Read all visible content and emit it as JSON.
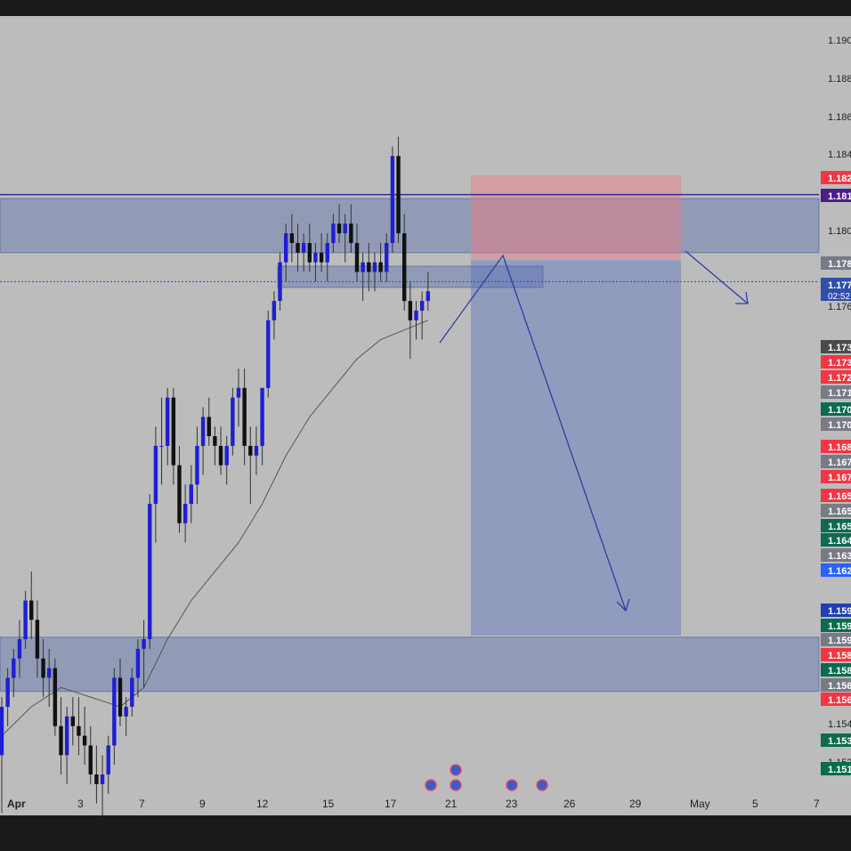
{
  "chart_data": {
    "type": "candlestick",
    "instrument_note": "",
    "x_tick_labels": [
      "Apr",
      "3",
      "7",
      "9",
      "12",
      "15",
      "17",
      "21",
      "23",
      "26",
      "29",
      "May",
      "5",
      "7"
    ],
    "y_tick_labels": [
      "1.190",
      "1.188",
      "1.186",
      "1.184",
      "1.180",
      "1.178",
      "1.176",
      "1.154",
      "1.152"
    ],
    "price_tags": [
      {
        "text": "1.182",
        "color": "#f23645"
      },
      {
        "text": "1.181",
        "color": "#4a1f8a"
      },
      {
        "text": "1.178",
        "color": "#787b86"
      },
      {
        "text": "1.177",
        "color": "#2f4fa8",
        "sub": "02:52"
      },
      {
        "text": "1.173",
        "color": "#4a4a4a"
      },
      {
        "text": "1.173",
        "color": "#f23645"
      },
      {
        "text": "1.172",
        "color": "#f23645"
      },
      {
        "text": "1.171",
        "color": "#787b86"
      },
      {
        "text": "1.170",
        "color": "#0b6b4f"
      },
      {
        "text": "1.170",
        "color": "#787b86"
      },
      {
        "text": "1.168",
        "color": "#f23645"
      },
      {
        "text": "1.167",
        "color": "#787b86"
      },
      {
        "text": "1.167",
        "color": "#f23645"
      },
      {
        "text": "1.165",
        "color": "#f23645"
      },
      {
        "text": "1.165",
        "color": "#787b86"
      },
      {
        "text": "1.165",
        "color": "#0b6b4f"
      },
      {
        "text": "1.164",
        "color": "#0b6b4f"
      },
      {
        "text": "1.163",
        "color": "#787b86"
      },
      {
        "text": "1.162",
        "color": "#2962ff"
      },
      {
        "text": "1.159",
        "color": "#1f3fb0"
      },
      {
        "text": "1.159",
        "color": "#0b6b4f"
      },
      {
        "text": "1.159",
        "color": "#787b86"
      },
      {
        "text": "1.158",
        "color": "#f23645"
      },
      {
        "text": "1.158",
        "color": "#0b6b4f"
      },
      {
        "text": "1.156",
        "color": "#787b86"
      },
      {
        "text": "1.156",
        "color": "#f23645"
      },
      {
        "text": "1.153",
        "color": "#0b6b4f"
      },
      {
        "text": "1.151",
        "color": "#0b6b4f"
      }
    ],
    "candles": [
      [
        1.153,
        1.156,
        1.15,
        1.1555
      ],
      [
        1.1555,
        1.1575,
        1.1545,
        1.157
      ],
      [
        1.157,
        1.1585,
        1.156,
        1.158
      ],
      [
        1.158,
        1.16,
        1.157,
        1.159
      ],
      [
        1.159,
        1.1615,
        1.1585,
        1.161
      ],
      [
        1.161,
        1.1625,
        1.159,
        1.16
      ],
      [
        1.16,
        1.161,
        1.157,
        1.158
      ],
      [
        1.158,
        1.159,
        1.156,
        1.157
      ],
      [
        1.157,
        1.1585,
        1.1555,
        1.1575
      ],
      [
        1.1575,
        1.158,
        1.154,
        1.1545
      ],
      [
        1.1545,
        1.156,
        1.152,
        1.153
      ],
      [
        1.153,
        1.1555,
        1.1515,
        1.155
      ],
      [
        1.155,
        1.156,
        1.1535,
        1.1545
      ],
      [
        1.1545,
        1.156,
        1.153,
        1.154
      ],
      [
        1.154,
        1.1555,
        1.1525,
        1.1535
      ],
      [
        1.1535,
        1.1545,
        1.1515,
        1.152
      ],
      [
        1.152,
        1.1535,
        1.1505,
        1.1515
      ],
      [
        1.1515,
        1.153,
        1.1495,
        1.152
      ],
      [
        1.152,
        1.154,
        1.151,
        1.1535
      ],
      [
        1.1535,
        1.1575,
        1.1525,
        1.157
      ],
      [
        1.157,
        1.158,
        1.1545,
        1.155
      ],
      [
        1.155,
        1.156,
        1.154,
        1.1555
      ],
      [
        1.1555,
        1.1575,
        1.155,
        1.157
      ],
      [
        1.157,
        1.159,
        1.156,
        1.1585
      ],
      [
        1.1585,
        1.16,
        1.1565,
        1.159
      ],
      [
        1.159,
        1.1665,
        1.1585,
        1.166
      ],
      [
        1.166,
        1.17,
        1.164,
        1.169
      ],
      [
        1.169,
        1.1715,
        1.167,
        1.169
      ],
      [
        1.169,
        1.172,
        1.168,
        1.1715
      ],
      [
        1.1715,
        1.172,
        1.167,
        1.168
      ],
      [
        1.168,
        1.169,
        1.1645,
        1.165
      ],
      [
        1.165,
        1.167,
        1.164,
        1.166
      ],
      [
        1.166,
        1.168,
        1.165,
        1.167
      ],
      [
        1.167,
        1.17,
        1.166,
        1.169
      ],
      [
        1.169,
        1.171,
        1.1675,
        1.1705
      ],
      [
        1.1705,
        1.1715,
        1.169,
        1.1695
      ],
      [
        1.1695,
        1.17,
        1.168,
        1.169
      ],
      [
        1.169,
        1.17,
        1.1675,
        1.168
      ],
      [
        1.168,
        1.1695,
        1.167,
        1.169
      ],
      [
        1.169,
        1.172,
        1.1685,
        1.1715
      ],
      [
        1.1715,
        1.173,
        1.17,
        1.172
      ],
      [
        1.172,
        1.173,
        1.168,
        1.169
      ],
      [
        1.169,
        1.17,
        1.166,
        1.1685
      ],
      [
        1.1685,
        1.17,
        1.1675,
        1.169
      ],
      [
        1.169,
        1.172,
        1.168,
        1.172
      ],
      [
        1.172,
        1.176,
        1.1715,
        1.1755
      ],
      [
        1.1755,
        1.177,
        1.1745,
        1.1765
      ],
      [
        1.1765,
        1.179,
        1.176,
        1.1785
      ],
      [
        1.1785,
        1.1805,
        1.1775,
        1.18
      ],
      [
        1.18,
        1.181,
        1.1785,
        1.1795
      ],
      [
        1.1795,
        1.1805,
        1.178,
        1.179
      ],
      [
        1.179,
        1.18,
        1.178,
        1.1795
      ],
      [
        1.1795,
        1.1805,
        1.178,
        1.1785
      ],
      [
        1.1785,
        1.1795,
        1.1775,
        1.179
      ],
      [
        1.179,
        1.18,
        1.178,
        1.1785
      ],
      [
        1.1785,
        1.18,
        1.1775,
        1.1795
      ],
      [
        1.1795,
        1.181,
        1.179,
        1.1805
      ],
      [
        1.1805,
        1.1815,
        1.1795,
        1.18
      ],
      [
        1.18,
        1.181,
        1.1785,
        1.1805
      ],
      [
        1.1805,
        1.1815,
        1.179,
        1.1795
      ],
      [
        1.1795,
        1.1805,
        1.1775,
        1.178
      ],
      [
        1.178,
        1.179,
        1.1765,
        1.1785
      ],
      [
        1.1785,
        1.1795,
        1.177,
        1.178
      ],
      [
        1.178,
        1.179,
        1.177,
        1.1785
      ],
      [
        1.1785,
        1.1795,
        1.1775,
        1.178
      ],
      [
        1.178,
        1.18,
        1.1775,
        1.1795
      ],
      [
        1.1795,
        1.1845,
        1.179,
        1.184
      ],
      [
        1.184,
        1.185,
        1.1795,
        1.18
      ],
      [
        1.18,
        1.181,
        1.176,
        1.1765
      ],
      [
        1.1765,
        1.1775,
        1.1735,
        1.1755
      ],
      [
        1.1755,
        1.1765,
        1.1745,
        1.176
      ],
      [
        1.176,
        1.177,
        1.1745,
        1.1765
      ],
      [
        1.1765,
        1.178,
        1.176,
        1.177
      ]
    ],
    "moving_average": [
      [
        0,
        1.154
      ],
      [
        5,
        1.1555
      ],
      [
        10,
        1.1565
      ],
      [
        15,
        1.156
      ],
      [
        20,
        1.1555
      ],
      [
        24,
        1.1565
      ],
      [
        28,
        1.159
      ],
      [
        32,
        1.161
      ],
      [
        36,
        1.1625
      ],
      [
        40,
        1.164
      ],
      [
        44,
        1.166
      ],
      [
        48,
        1.1685
      ],
      [
        52,
        1.1705
      ],
      [
        56,
        1.172
      ],
      [
        60,
        1.1735
      ],
      [
        64,
        1.1745
      ],
      [
        68,
        1.175
      ],
      [
        72,
        1.1755
      ]
    ],
    "zones": [
      {
        "name": "upper-supply-zone",
        "y0": 1.179,
        "y1": 1.1818
      },
      {
        "name": "middle-zone",
        "y0": 1.1772,
        "y1": 1.1783
      },
      {
        "name": "lower-demand-zone",
        "y0": 1.1563,
        "y1": 1.1591
      }
    ],
    "horizontal_line": 1.182,
    "dotted_price_line": 1.1775,
    "short_position": {
      "entry": 1.1786,
      "stop": 1.183,
      "target": 1.1592
    },
    "ylim": [
      1.15,
      1.192
    ]
  }
}
